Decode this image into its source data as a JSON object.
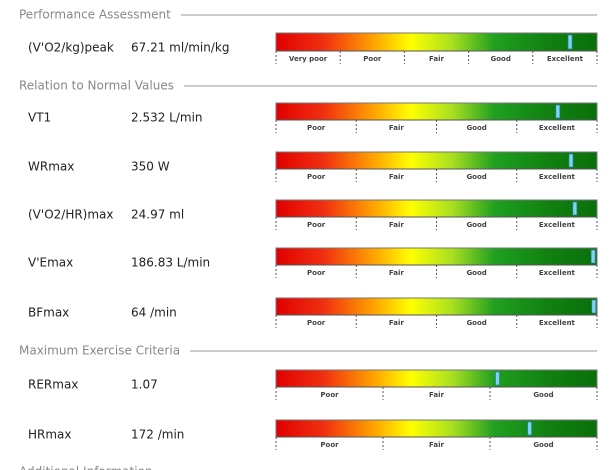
{
  "sections": [
    {
      "title": "Performance Assessment",
      "rows": [
        {
          "label": "(V'O2/kg)peak",
          "value": "67.21 ml/min/kg",
          "scale": [
            "Very poor",
            "Poor",
            "Fair",
            "Good",
            "Excellent"
          ],
          "marker": 0.916
        }
      ]
    },
    {
      "title": "Relation to Normal Values",
      "rows": [
        {
          "label": "VT1",
          "value": "2.532 L/min",
          "scale": [
            "Poor",
            "Fair",
            "Good",
            "Excellent"
          ],
          "marker": 0.878
        },
        {
          "label": "WRmax",
          "value": "350 W",
          "scale": [
            "Poor",
            "Fair",
            "Good",
            "Excellent"
          ],
          "marker": 0.919
        },
        {
          "label": "(V'O2/HR)max",
          "value": "24.97 ml",
          "scale": [
            "Poor",
            "Fair",
            "Good",
            "Excellent"
          ],
          "marker": 0.931
        },
        {
          "label": "V'Emax",
          "value": "186.83 L/min",
          "scale": [
            "Poor",
            "Fair",
            "Good",
            "Excellent"
          ],
          "marker": 0.988
        },
        {
          "label": "BFmax",
          "value": "64 /min",
          "scale": [
            "Poor",
            "Fair",
            "Good",
            "Excellent"
          ],
          "marker": 0.99
        }
      ]
    },
    {
      "title": "Maximum Exercise Criteria",
      "rows": [
        {
          "label": "RERmax",
          "value": "1.07",
          "scale": [
            "Poor",
            "Fair",
            "Good"
          ],
          "marker": 0.69
        },
        {
          "label": "HRmax",
          "value": "172 /min",
          "scale": [
            "Poor",
            "Fair",
            "Good"
          ],
          "marker": 0.79
        }
      ]
    },
    {
      "title": "Additional Information",
      "rows": []
    }
  ]
}
